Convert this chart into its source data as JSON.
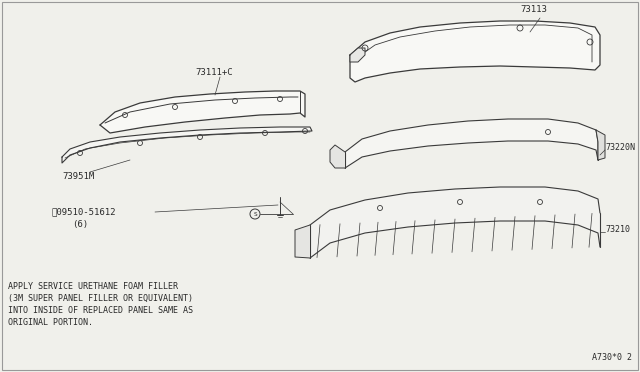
{
  "bg_color": "#f0f0eb",
  "line_color": "#3a3a3a",
  "text_color": "#2a2a2a",
  "diagram_code": "A730*0 2",
  "note_lines": [
    "APPLY SERVICE URETHANE FOAM FILLER",
    "(3M SUPER PANEL FILLER OR EQUIVALENT)",
    "INTO INSIDE OF REPLACED PANEL SAME AS",
    "ORIGINAL PORTION."
  ]
}
